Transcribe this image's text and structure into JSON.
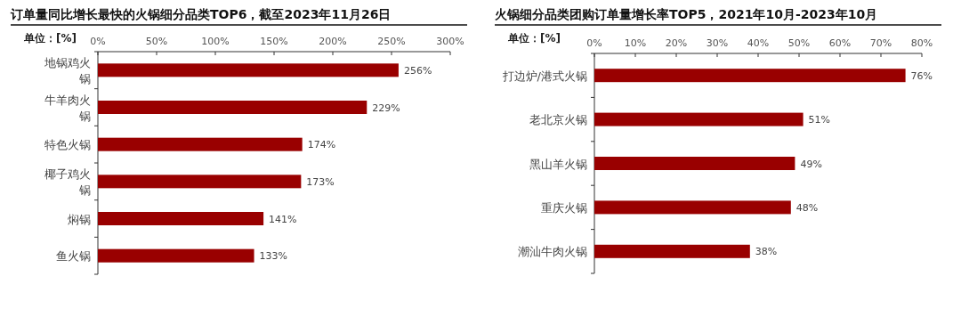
{
  "chart_data": [
    {
      "type": "bar",
      "orientation": "horizontal",
      "title": "订单量同比增长最快的火锅细分品类TOP6，截至2023年11月26日",
      "xlabel": "单位：[%]",
      "categories": [
        "地锅鸡火锅",
        "牛羊肉火锅",
        "特色火锅",
        "椰子鸡火锅",
        "焖锅",
        "鱼火锅"
      ],
      "values": [
        256,
        229,
        174,
        173,
        141,
        133
      ],
      "color": "#990000",
      "value_labels": [
        "256%",
        "229%",
        "174%",
        "173%",
        "141%",
        "133%"
      ],
      "xlim": [
        0,
        300
      ],
      "xticks": [
        {
          "value": 0,
          "label": "0%"
        },
        {
          "value": 50,
          "label": "50%"
        },
        {
          "value": 100,
          "label": "100%"
        },
        {
          "value": 150,
          "label": "150%"
        },
        {
          "value": 200,
          "label": "200%"
        },
        {
          "value": 250,
          "label": "250%"
        },
        {
          "value": 300,
          "label": "300%"
        }
      ]
    },
    {
      "type": "bar",
      "orientation": "horizontal",
      "title": "火锅细分品类团购订单量增长率TOP5，2021年10月-2023年10月",
      "xlabel": "单位：[%]",
      "categories": [
        "打边炉/港式火锅",
        "老北京火锅",
        "黑山羊火锅",
        "重庆火锅",
        "潮汕牛肉火锅"
      ],
      "values": [
        76,
        51,
        49,
        48,
        38
      ],
      "color": "#990000",
      "value_labels": [
        "76%",
        "51%",
        "49%",
        "48%",
        "38%"
      ],
      "xlim": [
        0,
        80
      ],
      "xticks": [
        {
          "value": 0,
          "label": "0%"
        },
        {
          "value": 10,
          "label": "10%"
        },
        {
          "value": 20,
          "label": "20%"
        },
        {
          "value": 30,
          "label": "30%"
        },
        {
          "value": 40,
          "label": "40%"
        },
        {
          "value": 50,
          "label": "50%"
        },
        {
          "value": 60,
          "label": "60%"
        },
        {
          "value": 70,
          "label": "70%"
        },
        {
          "value": 80,
          "label": "80%"
        }
      ]
    }
  ]
}
